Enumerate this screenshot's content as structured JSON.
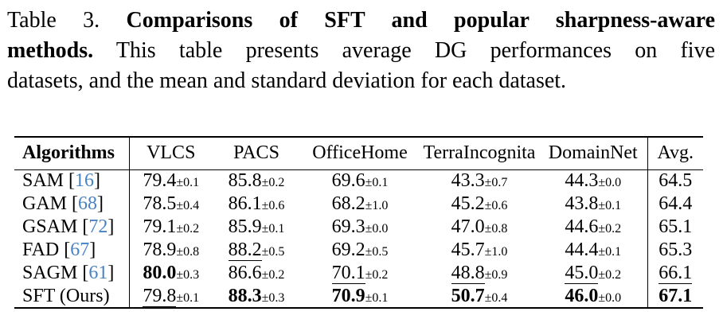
{
  "caption": {
    "line1_normal": "Table 3.",
    "line1_bold": "Comparisons of SFT and popular sharpness-aware",
    "line2_bold": "methods.",
    "line2_normal": "This table presents average DG performances on five",
    "line3": "datasets, and the mean and standard deviation for each dataset."
  },
  "colors": {
    "citation_link": "#4682c4",
    "text": "#000000",
    "background": "#ffffff"
  },
  "table": {
    "plus_minus": "±",
    "citation_brackets": [
      "[",
      "]"
    ],
    "columns": [
      "Algorithms",
      "VLCS",
      "PACS",
      "OfficeHome",
      "TerraIncognita",
      "DomainNet",
      "Avg."
    ],
    "rows": [
      {
        "algorithm": "SAM",
        "citation": "16",
        "values": [
          {
            "mean": "79.4",
            "std": "0.1",
            "style": "normal"
          },
          {
            "mean": "85.8",
            "std": "0.2",
            "style": "normal"
          },
          {
            "mean": "69.6",
            "std": "0.1",
            "style": "normal"
          },
          {
            "mean": "43.3",
            "std": "0.7",
            "style": "normal"
          },
          {
            "mean": "44.3",
            "std": "0.0",
            "style": "normal"
          }
        ],
        "avg": {
          "mean": "64.5",
          "style": "normal"
        }
      },
      {
        "algorithm": "GAM",
        "citation": "68",
        "values": [
          {
            "mean": "78.5",
            "std": "0.4",
            "style": "normal"
          },
          {
            "mean": "86.1",
            "std": "0.6",
            "style": "normal"
          },
          {
            "mean": "68.2",
            "std": "1.0",
            "style": "normal"
          },
          {
            "mean": "45.2",
            "std": "0.6",
            "style": "normal"
          },
          {
            "mean": "43.8",
            "std": "0.1",
            "style": "normal"
          }
        ],
        "avg": {
          "mean": "64.4",
          "style": "normal"
        }
      },
      {
        "algorithm": "GSAM",
        "citation": "72",
        "values": [
          {
            "mean": "79.1",
            "std": "0.2",
            "style": "normal"
          },
          {
            "mean": "85.9",
            "std": "0.1",
            "style": "normal"
          },
          {
            "mean": "69.3",
            "std": "0.0",
            "style": "normal"
          },
          {
            "mean": "47.0",
            "std": "0.8",
            "style": "normal"
          },
          {
            "mean": "44.6",
            "std": "0.2",
            "style": "normal"
          }
        ],
        "avg": {
          "mean": "65.1",
          "style": "normal"
        }
      },
      {
        "algorithm": "FAD",
        "citation": "67",
        "values": [
          {
            "mean": "78.9",
            "std": "0.8",
            "style": "normal"
          },
          {
            "mean": "88.2",
            "std": "0.5",
            "style": "underline"
          },
          {
            "mean": "69.2",
            "std": "0.5",
            "style": "normal"
          },
          {
            "mean": "45.7",
            "std": "1.0",
            "style": "normal"
          },
          {
            "mean": "44.4",
            "std": "0.1",
            "style": "normal"
          }
        ],
        "avg": {
          "mean": "65.3",
          "style": "normal"
        }
      },
      {
        "algorithm": "SAGM",
        "citation": "61",
        "values": [
          {
            "mean": "80.0",
            "std": "0.3",
            "style": "bold"
          },
          {
            "mean": "86.6",
            "std": "0.2",
            "style": "normal"
          },
          {
            "mean": "70.1",
            "std": "0.2",
            "style": "underline"
          },
          {
            "mean": "48.8",
            "std": "0.9",
            "style": "underline"
          },
          {
            "mean": "45.0",
            "std": "0.2",
            "style": "underline"
          }
        ],
        "avg": {
          "mean": "66.1",
          "style": "underline"
        }
      },
      {
        "algorithm": "SFT (Ours)",
        "citation": null,
        "values": [
          {
            "mean": "79.8",
            "std": "0.1",
            "style": "underline"
          },
          {
            "mean": "88.3",
            "std": "0.3",
            "style": "bold"
          },
          {
            "mean": "70.9",
            "std": "0.1",
            "style": "bold"
          },
          {
            "mean": "50.7",
            "std": "0.4",
            "style": "bold"
          },
          {
            "mean": "46.0",
            "std": "0.0",
            "style": "bold"
          }
        ],
        "avg": {
          "mean": "67.1",
          "style": "bold"
        }
      }
    ]
  }
}
